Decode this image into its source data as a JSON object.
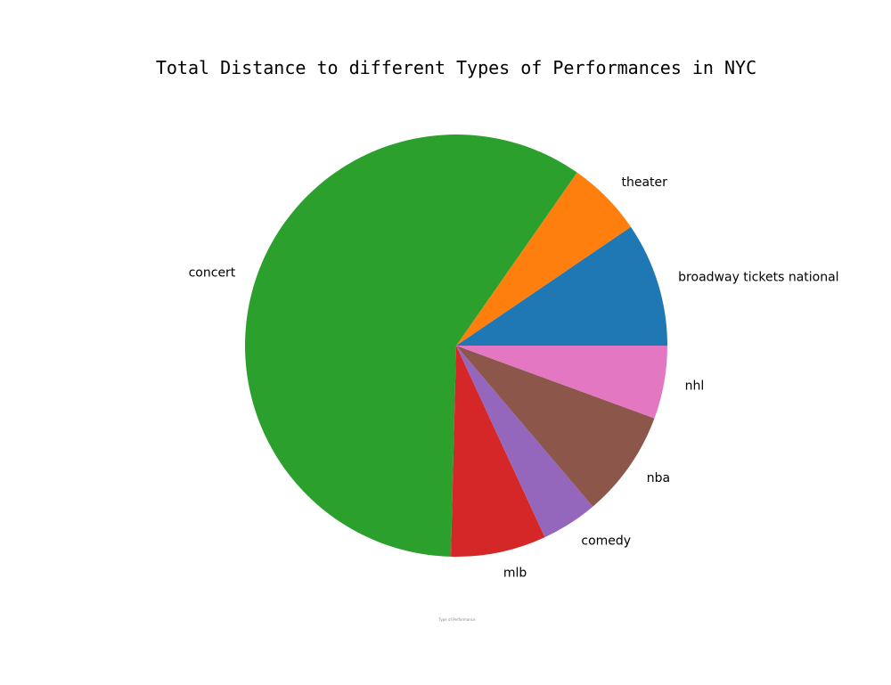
{
  "chart_data": {
    "type": "pie",
    "title": "Total Distance to different Types of Performances in NYC",
    "xlabel": "Type of Performance",
    "start_angle_deg": 0,
    "direction": "counterclockwise",
    "slices": [
      {
        "label": "broadway tickets national",
        "percent": 9.5,
        "color": "#1f77b4"
      },
      {
        "label": "theater",
        "percent": 5.8,
        "color": "#ff7f0e"
      },
      {
        "label": "concert",
        "percent": 59.3,
        "color": "#2ca02c"
      },
      {
        "label": "mlb",
        "percent": 7.3,
        "color": "#d62728"
      },
      {
        "label": "comedy",
        "percent": 4.3,
        "color": "#9467bd"
      },
      {
        "label": "nba",
        "percent": 8.2,
        "color": "#8c564b"
      },
      {
        "label": "nhl",
        "percent": 5.6,
        "color": "#e377c2"
      }
    ]
  }
}
